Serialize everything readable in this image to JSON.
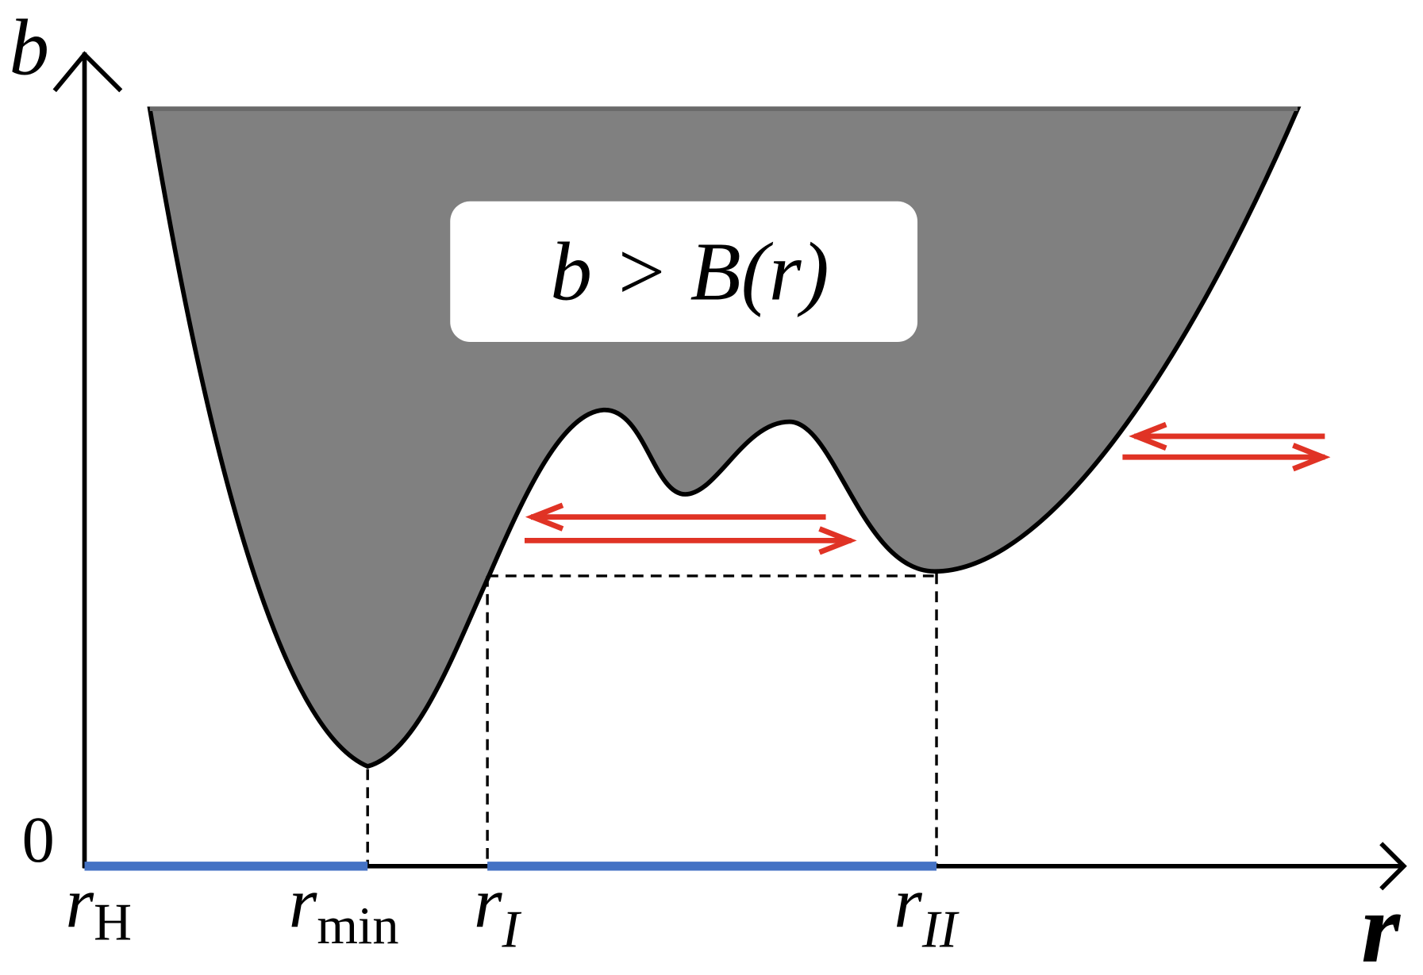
{
  "axes": {
    "y_label": "b",
    "x_label": "r",
    "origin_label": "0"
  },
  "region_label": "b > B(r)",
  "x_markers": [
    {
      "symbol": "r",
      "subscript": "H"
    },
    {
      "symbol": "r",
      "subscript": "min"
    },
    {
      "symbol": "r",
      "subscript": "I"
    },
    {
      "symbol": "r",
      "subscript": "II"
    }
  ]
}
